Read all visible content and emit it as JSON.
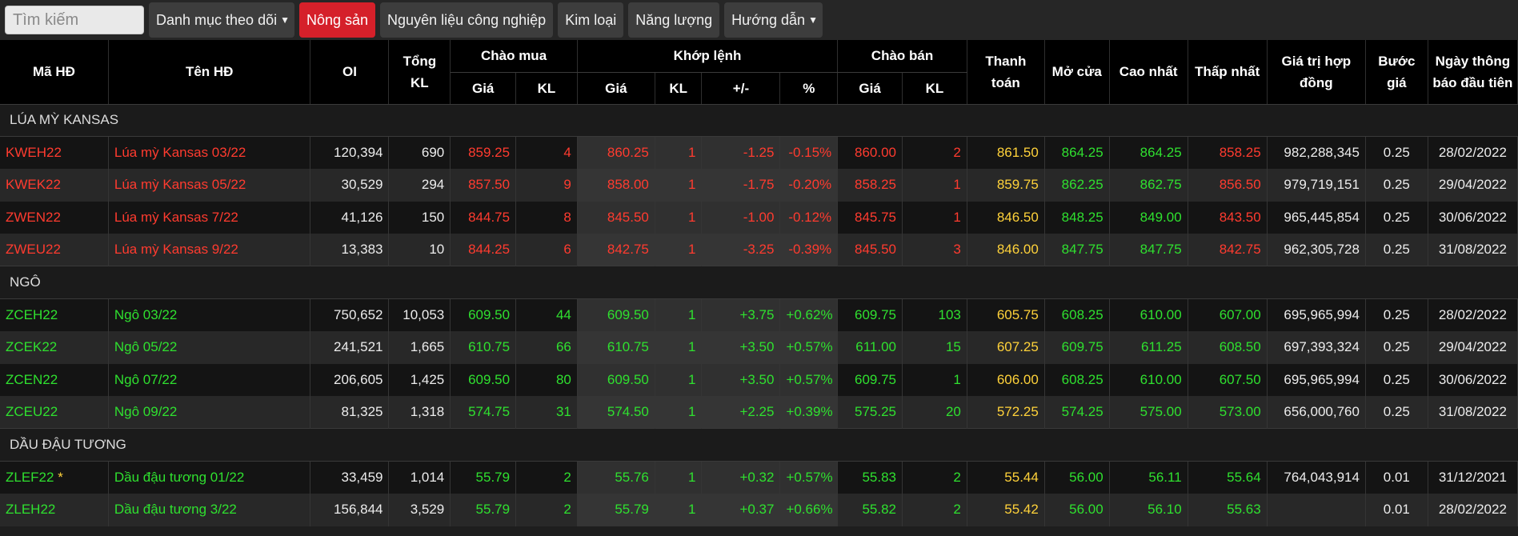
{
  "search": {
    "placeholder": "Tìm kiếm"
  },
  "tabs": [
    {
      "label": "Danh mục theo dõi",
      "dropdown": true,
      "active": false
    },
    {
      "label": "Nông sản",
      "dropdown": false,
      "active": true
    },
    {
      "label": "Nguyên liệu công nghiệp",
      "dropdown": false,
      "active": false
    },
    {
      "label": "Kim loại",
      "dropdown": false,
      "active": false
    },
    {
      "label": "Năng lượng",
      "dropdown": false,
      "active": false
    },
    {
      "label": "Hướng dẫn",
      "dropdown": true,
      "active": false
    }
  ],
  "headers": {
    "code": "Mã HĐ",
    "name": "Tên HĐ",
    "oi": "OI",
    "total_vol": [
      "Tổng",
      "KL"
    ],
    "bid": "Chào mua",
    "match": "Khớp lệnh",
    "ask": "Chào bán",
    "settle": [
      "Thanh",
      "toán"
    ],
    "open": "Mở cửa",
    "high": "Cao nhất",
    "low": "Thấp nhất",
    "contract_value": [
      "Giá trị hợp",
      "đồng"
    ],
    "tick": [
      "Bước",
      "giá"
    ],
    "first_notice": [
      "Ngày thông",
      "báo đầu tiên"
    ],
    "sub": {
      "price": "Giá",
      "vol": "KL",
      "change": "+/-",
      "pct": "%"
    }
  },
  "colors": {
    "up": "#2fe02f",
    "down": "#ff3b2f",
    "settle": "#ffd23a",
    "active_tab": "#d5202a"
  },
  "groups": [
    {
      "title": "LÚA MỲ KANSAS",
      "rows": [
        {
          "code": "KWEH22",
          "name": "Lúa mỳ Kansas 03/22",
          "oi": "120,394",
          "tvol": "690",
          "bid_p": "859.25",
          "bid_v": "4",
          "m_p": "860.25",
          "m_v": "1",
          "chg": "-1.25",
          "pct": "-0.15%",
          "ask_p": "860.00",
          "ask_v": "2",
          "settle": "861.50",
          "open": "864.25",
          "high": "864.25",
          "low": "858.25",
          "value": "982,288,345",
          "tick": "0.25",
          "notice": "28/02/2022",
          "trend": "down",
          "star": false
        },
        {
          "code": "KWEK22",
          "name": "Lúa mỳ Kansas 05/22",
          "oi": "30,529",
          "tvol": "294",
          "bid_p": "857.50",
          "bid_v": "9",
          "m_p": "858.00",
          "m_v": "1",
          "chg": "-1.75",
          "pct": "-0.20%",
          "ask_p": "858.25",
          "ask_v": "1",
          "settle": "859.75",
          "open": "862.25",
          "high": "862.75",
          "low": "856.50",
          "value": "979,719,151",
          "tick": "0.25",
          "notice": "29/04/2022",
          "trend": "down",
          "star": false
        },
        {
          "code": "ZWEN22",
          "name": "Lúa mỳ Kansas 7/22",
          "oi": "41,126",
          "tvol": "150",
          "bid_p": "844.75",
          "bid_v": "8",
          "m_p": "845.50",
          "m_v": "1",
          "chg": "-1.00",
          "pct": "-0.12%",
          "ask_p": "845.75",
          "ask_v": "1",
          "settle": "846.50",
          "open": "848.25",
          "high": "849.00",
          "low": "843.50",
          "value": "965,445,854",
          "tick": "0.25",
          "notice": "30/06/2022",
          "trend": "down",
          "star": false
        },
        {
          "code": "ZWEU22",
          "name": "Lúa mỳ Kansas 9/22",
          "oi": "13,383",
          "tvol": "10",
          "bid_p": "844.25",
          "bid_v": "6",
          "m_p": "842.75",
          "m_v": "1",
          "chg": "-3.25",
          "pct": "-0.39%",
          "ask_p": "845.50",
          "ask_v": "3",
          "settle": "846.00",
          "open": "847.75",
          "high": "847.75",
          "low": "842.75",
          "value": "962,305,728",
          "tick": "0.25",
          "notice": "31/08/2022",
          "trend": "down",
          "star": false
        }
      ]
    },
    {
      "title": "NGÔ",
      "rows": [
        {
          "code": "ZCEH22",
          "name": "Ngô 03/22",
          "oi": "750,652",
          "tvol": "10,053",
          "bid_p": "609.50",
          "bid_v": "44",
          "m_p": "609.50",
          "m_v": "1",
          "chg": "+3.75",
          "pct": "+0.62%",
          "ask_p": "609.75",
          "ask_v": "103",
          "settle": "605.75",
          "open": "608.25",
          "high": "610.00",
          "low": "607.00",
          "value": "695,965,994",
          "tick": "0.25",
          "notice": "28/02/2022",
          "trend": "up",
          "star": false
        },
        {
          "code": "ZCEK22",
          "name": "Ngô 05/22",
          "oi": "241,521",
          "tvol": "1,665",
          "bid_p": "610.75",
          "bid_v": "66",
          "m_p": "610.75",
          "m_v": "1",
          "chg": "+3.50",
          "pct": "+0.57%",
          "ask_p": "611.00",
          "ask_v": "15",
          "settle": "607.25",
          "open": "609.75",
          "high": "611.25",
          "low": "608.50",
          "value": "697,393,324",
          "tick": "0.25",
          "notice": "29/04/2022",
          "trend": "up",
          "star": false
        },
        {
          "code": "ZCEN22",
          "name": "Ngô 07/22",
          "oi": "206,605",
          "tvol": "1,425",
          "bid_p": "609.50",
          "bid_v": "80",
          "m_p": "609.50",
          "m_v": "1",
          "chg": "+3.50",
          "pct": "+0.57%",
          "ask_p": "609.75",
          "ask_v": "1",
          "settle": "606.00",
          "open": "608.25",
          "high": "610.00",
          "low": "607.50",
          "value": "695,965,994",
          "tick": "0.25",
          "notice": "30/06/2022",
          "trend": "up",
          "star": false
        },
        {
          "code": "ZCEU22",
          "name": "Ngô 09/22",
          "oi": "81,325",
          "tvol": "1,318",
          "bid_p": "574.75",
          "bid_v": "31",
          "m_p": "574.50",
          "m_v": "1",
          "chg": "+2.25",
          "pct": "+0.39%",
          "ask_p": "575.25",
          "ask_v": "20",
          "settle": "572.25",
          "open": "574.25",
          "high": "575.00",
          "low": "573.00",
          "value": "656,000,760",
          "tick": "0.25",
          "notice": "31/08/2022",
          "trend": "up",
          "star": false
        }
      ]
    },
    {
      "title": "DẦU ĐẬU TƯƠNG",
      "rows": [
        {
          "code": "ZLEF22",
          "name": "Dầu đậu tương 01/22",
          "oi": "33,459",
          "tvol": "1,014",
          "bid_p": "55.79",
          "bid_v": "2",
          "m_p": "55.76",
          "m_v": "1",
          "chg": "+0.32",
          "pct": "+0.57%",
          "ask_p": "55.83",
          "ask_v": "2",
          "settle": "55.44",
          "open": "56.00",
          "high": "56.11",
          "low": "55.64",
          "value": "764,043,914",
          "tick": "0.01",
          "notice": "31/12/2021",
          "trend": "up",
          "star": true
        },
        {
          "code": "ZLEH22",
          "name": "Dầu đậu tương 3/22",
          "oi": "156,844",
          "tvol": "3,529",
          "bid_p": "55.79",
          "bid_v": "2",
          "m_p": "55.79",
          "m_v": "1",
          "chg": "+0.37",
          "pct": "+0.66%",
          "ask_p": "55.82",
          "ask_v": "2",
          "settle": "55.42",
          "open": "56.00",
          "high": "56.10",
          "low": "55.63",
          "value": "",
          "tick": "0.01",
          "notice": "28/02/2022",
          "trend": "up",
          "star": false
        }
      ]
    }
  ]
}
